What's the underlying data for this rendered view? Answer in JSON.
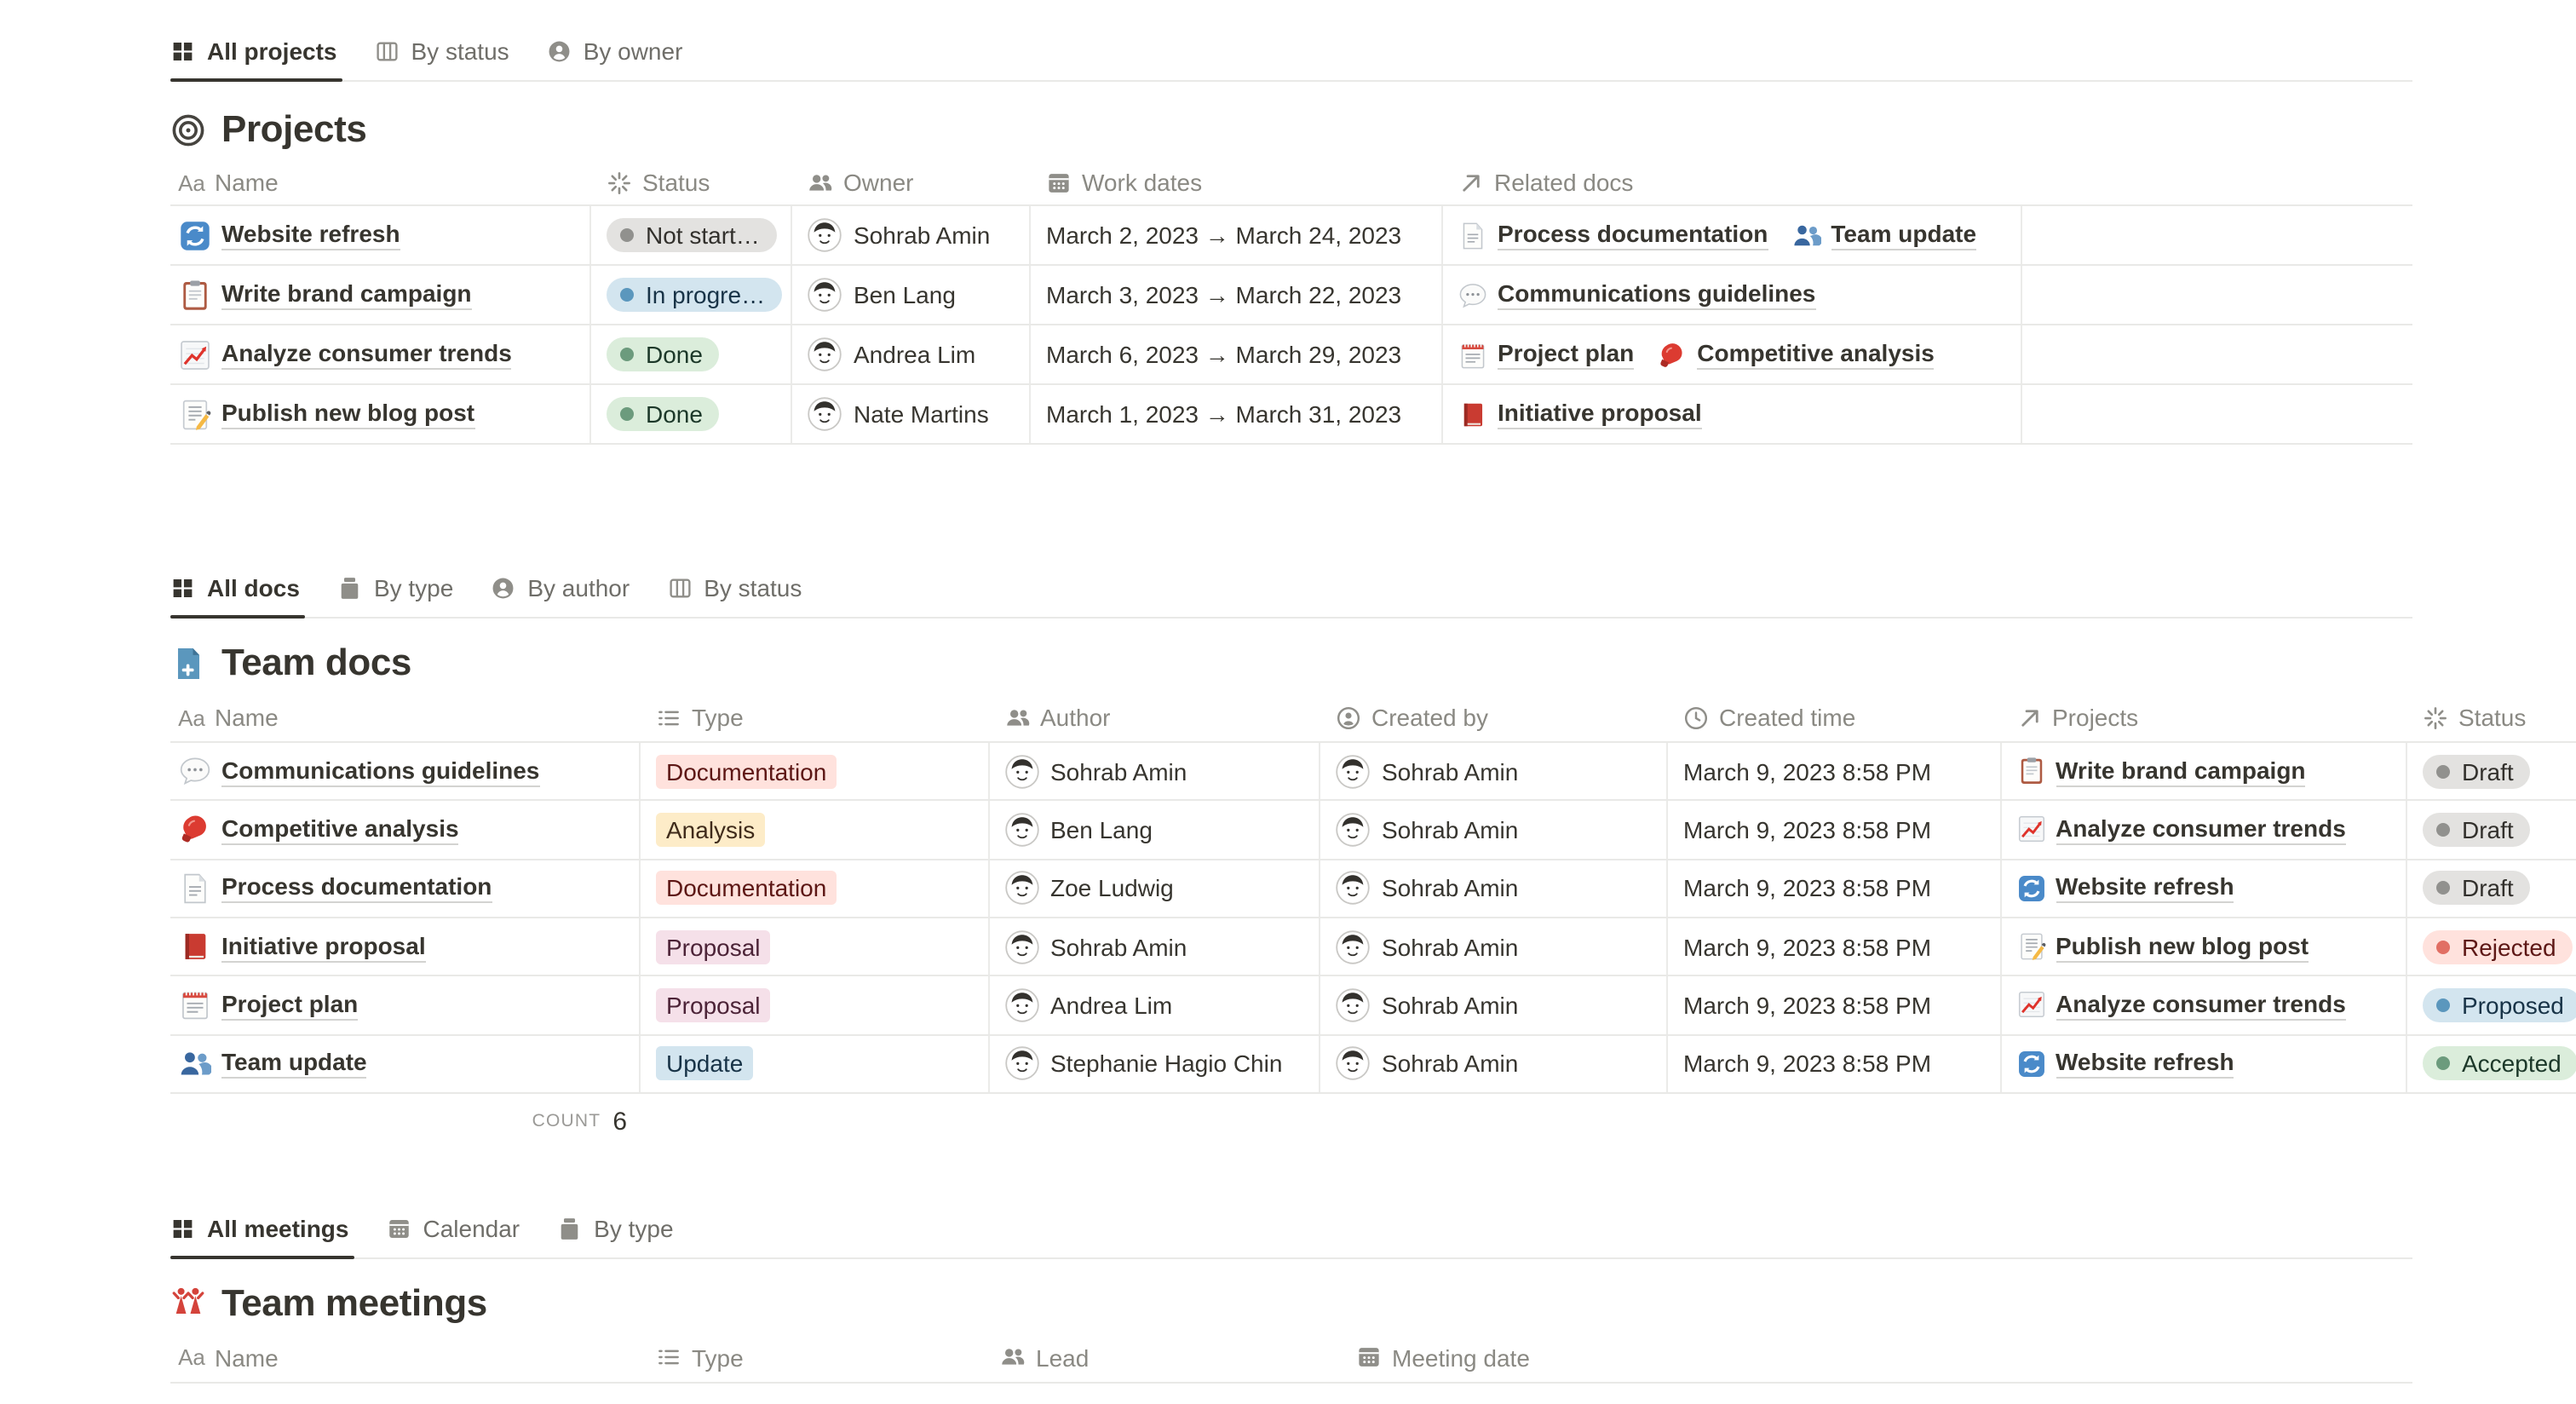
{
  "projects": {
    "tabs": [
      {
        "label": "All projects",
        "icon": "table-view",
        "active": true
      },
      {
        "label": "By status",
        "icon": "board-view"
      },
      {
        "label": "By owner",
        "icon": "person-view"
      }
    ],
    "title": "Projects",
    "title_icon": "target",
    "columns": [
      {
        "label": "Name",
        "icon": "title"
      },
      {
        "label": "Status",
        "icon": "status"
      },
      {
        "label": "Owner",
        "icon": "people"
      },
      {
        "label": "Work dates",
        "icon": "calendar"
      },
      {
        "label": "Related docs",
        "icon": "relation"
      }
    ],
    "rows": [
      {
        "icon": "refresh",
        "name": "Website refresh",
        "status": {
          "label": "Not start…",
          "color": "gray"
        },
        "owner": "Sohrab Amin",
        "dates": "March 2, 2023 → March 24, 2023",
        "related": [
          {
            "icon": "page",
            "label": "Process documentation"
          },
          {
            "icon": "people-blue",
            "label": "Team update"
          }
        ]
      },
      {
        "icon": "clipboard",
        "name": "Write brand campaign",
        "status": {
          "label": "In progre…",
          "color": "blue"
        },
        "owner": "Ben Lang",
        "dates": "March 3, 2023 → March 22, 2023",
        "related": [
          {
            "icon": "speech",
            "label": "Communications guidelines"
          }
        ]
      },
      {
        "icon": "chart",
        "name": "Analyze consumer trends",
        "status": {
          "label": "Done",
          "color": "green"
        },
        "owner": "Andrea Lim",
        "dates": "March 6, 2023 → March 29, 2023",
        "related": [
          {
            "icon": "notepad",
            "label": "Project plan"
          },
          {
            "icon": "glove",
            "label": "Competitive analysis"
          }
        ]
      },
      {
        "icon": "memo",
        "name": "Publish new blog post",
        "status": {
          "label": "Done",
          "color": "green"
        },
        "owner": "Nate Martins",
        "dates": "March 1, 2023 → March 31, 2023",
        "related": [
          {
            "icon": "book",
            "label": "Initiative proposal"
          }
        ]
      }
    ]
  },
  "docs": {
    "tabs": [
      {
        "label": "All docs",
        "icon": "table-view",
        "active": true
      },
      {
        "label": "By type",
        "icon": "gallery-view"
      },
      {
        "label": "By author",
        "icon": "person-view"
      },
      {
        "label": "By status",
        "icon": "board-view"
      }
    ],
    "title": "Team docs",
    "title_icon": "doc-plus",
    "columns": [
      {
        "label": "Name",
        "icon": "title"
      },
      {
        "label": "Type",
        "icon": "list"
      },
      {
        "label": "Author",
        "icon": "people"
      },
      {
        "label": "Created by",
        "icon": "person-circle"
      },
      {
        "label": "Created time",
        "icon": "clock"
      },
      {
        "label": "Projects",
        "icon": "relation"
      },
      {
        "label": "Status",
        "icon": "status"
      }
    ],
    "rows": [
      {
        "icon": "speech",
        "name": "Communications guidelines",
        "type": {
          "label": "Documentation",
          "color": "red"
        },
        "author": "Sohrab Amin",
        "created_by": "Sohrab Amin",
        "created_time": "March 9, 2023 8:58 PM",
        "project": {
          "icon": "clipboard",
          "label": "Write brand campaign"
        },
        "status": {
          "label": "Draft",
          "color": "gray"
        }
      },
      {
        "icon": "glove",
        "name": "Competitive analysis",
        "type": {
          "label": "Analysis",
          "color": "yellow"
        },
        "author": "Ben Lang",
        "created_by": "Sohrab Amin",
        "created_time": "March 9, 2023 8:58 PM",
        "project": {
          "icon": "chart",
          "label": "Analyze consumer trends"
        },
        "status": {
          "label": "Draft",
          "color": "gray"
        }
      },
      {
        "icon": "page",
        "name": "Process documentation",
        "type": {
          "label": "Documentation",
          "color": "red"
        },
        "author": "Zoe Ludwig",
        "created_by": "Sohrab Amin",
        "created_time": "March 9, 2023 8:58 PM",
        "project": {
          "icon": "refresh",
          "label": "Website refresh"
        },
        "status": {
          "label": "Draft",
          "color": "gray"
        }
      },
      {
        "icon": "book",
        "name": "Initiative proposal",
        "type": {
          "label": "Proposal",
          "color": "pink"
        },
        "author": "Sohrab Amin",
        "created_by": "Sohrab Amin",
        "created_time": "March 9, 2023 8:58 PM",
        "project": {
          "icon": "memo",
          "label": "Publish new blog post"
        },
        "status": {
          "label": "Rejected",
          "color": "red"
        }
      },
      {
        "icon": "notepad",
        "name": "Project plan",
        "type": {
          "label": "Proposal",
          "color": "pink"
        },
        "author": "Andrea Lim",
        "created_by": "Sohrab Amin",
        "created_time": "March 9, 2023 8:58 PM",
        "project": {
          "icon": "chart",
          "label": "Analyze consumer trends"
        },
        "status": {
          "label": "Proposed",
          "color": "blue"
        }
      },
      {
        "icon": "people-blue",
        "name": "Team update",
        "type": {
          "label": "Update",
          "color": "blue"
        },
        "author": "Stephanie Hagio Chin",
        "created_by": "Sohrab Amin",
        "created_time": "March 9, 2023 8:58 PM",
        "project": {
          "icon": "refresh",
          "label": "Website refresh"
        },
        "status": {
          "label": "Accepted",
          "color": "green"
        }
      }
    ],
    "count": {
      "label": "COUNT",
      "value": "6"
    }
  },
  "meetings": {
    "tabs": [
      {
        "label": "All meetings",
        "icon": "table-view",
        "active": true
      },
      {
        "label": "Calendar",
        "icon": "calendar-view"
      },
      {
        "label": "By type",
        "icon": "gallery-view"
      }
    ],
    "title": "Team meetings",
    "title_icon": "meeting-people",
    "columns": [
      {
        "label": "Name",
        "icon": "title"
      },
      {
        "label": "Type",
        "icon": "list"
      },
      {
        "label": "Lead",
        "icon": "people"
      },
      {
        "label": "Meeting date",
        "icon": "calendar"
      }
    ]
  },
  "palette": {
    "tag_red_bg": "#FFE2DD",
    "tag_red_text": "#5D1715",
    "tag_yellow_bg": "#FDECC8",
    "tag_yellow_text": "#402C1B",
    "tag_pink_bg": "#F5E0E9",
    "tag_pink_text": "#4C2337",
    "tag_blue_bg": "#D3E5EF",
    "tag_blue_text": "#183347",
    "tag_green_bg": "#DBEDDB",
    "tag_green_text": "#1C3829",
    "tag_gray_bg": "#E3E2E0",
    "tag_gray_text": "#32302C",
    "dot_gray": "#91918E",
    "dot_blue": "#5B97BD",
    "dot_green": "#6C9B7D",
    "dot_red": "#E16F64",
    "text": "#37352F",
    "divider": "#E9E9E7"
  }
}
